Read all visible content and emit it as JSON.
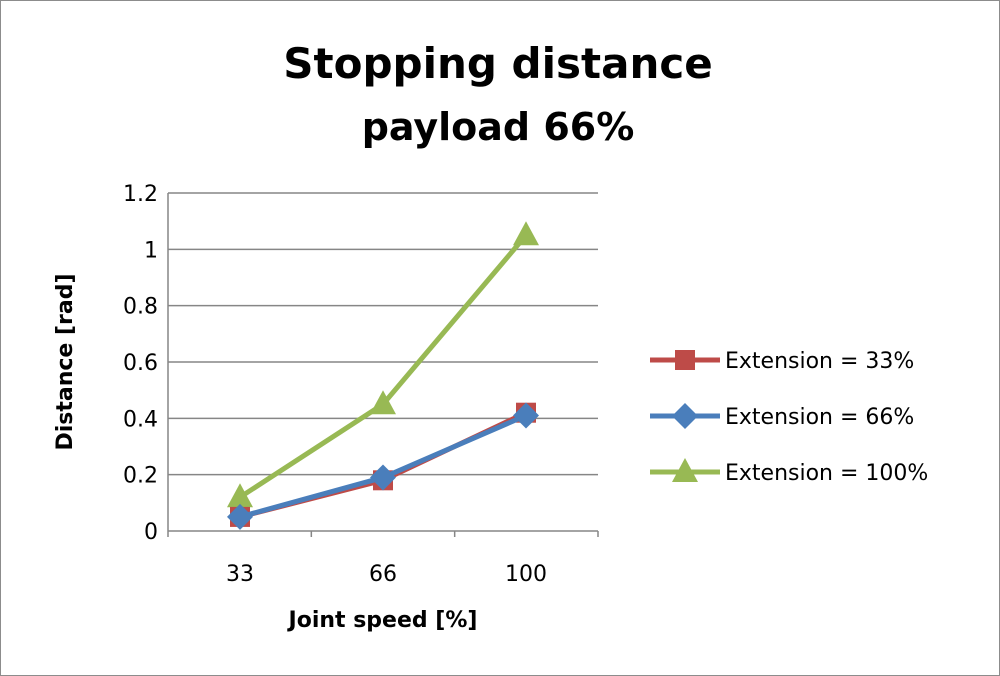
{
  "chart_data": {
    "type": "line",
    "title": "Stopping distance",
    "subtitle": "payload 66%",
    "xlabel": "Joint speed [%]",
    "ylabel": "Distance [rad]",
    "categories": [
      "33",
      "66",
      "100"
    ],
    "ylim": [
      0,
      1.2
    ],
    "yticks": [
      "0",
      "0.2",
      "0.4",
      "0.6",
      "0.8",
      "1",
      "1.2"
    ],
    "grid": true,
    "legend_position": "right",
    "series": [
      {
        "name": "Extension = 33%",
        "values": [
          0.05,
          0.18,
          0.42
        ],
        "color": "#BE4B48",
        "marker": "square"
      },
      {
        "name": "Extension = 66%",
        "values": [
          0.05,
          0.19,
          0.41
        ],
        "color": "#4A7EBB",
        "marker": "diamond"
      },
      {
        "name": "Extension = 100%",
        "values": [
          0.12,
          0.45,
          1.05
        ],
        "color": "#98B954",
        "marker": "triangle"
      }
    ]
  }
}
